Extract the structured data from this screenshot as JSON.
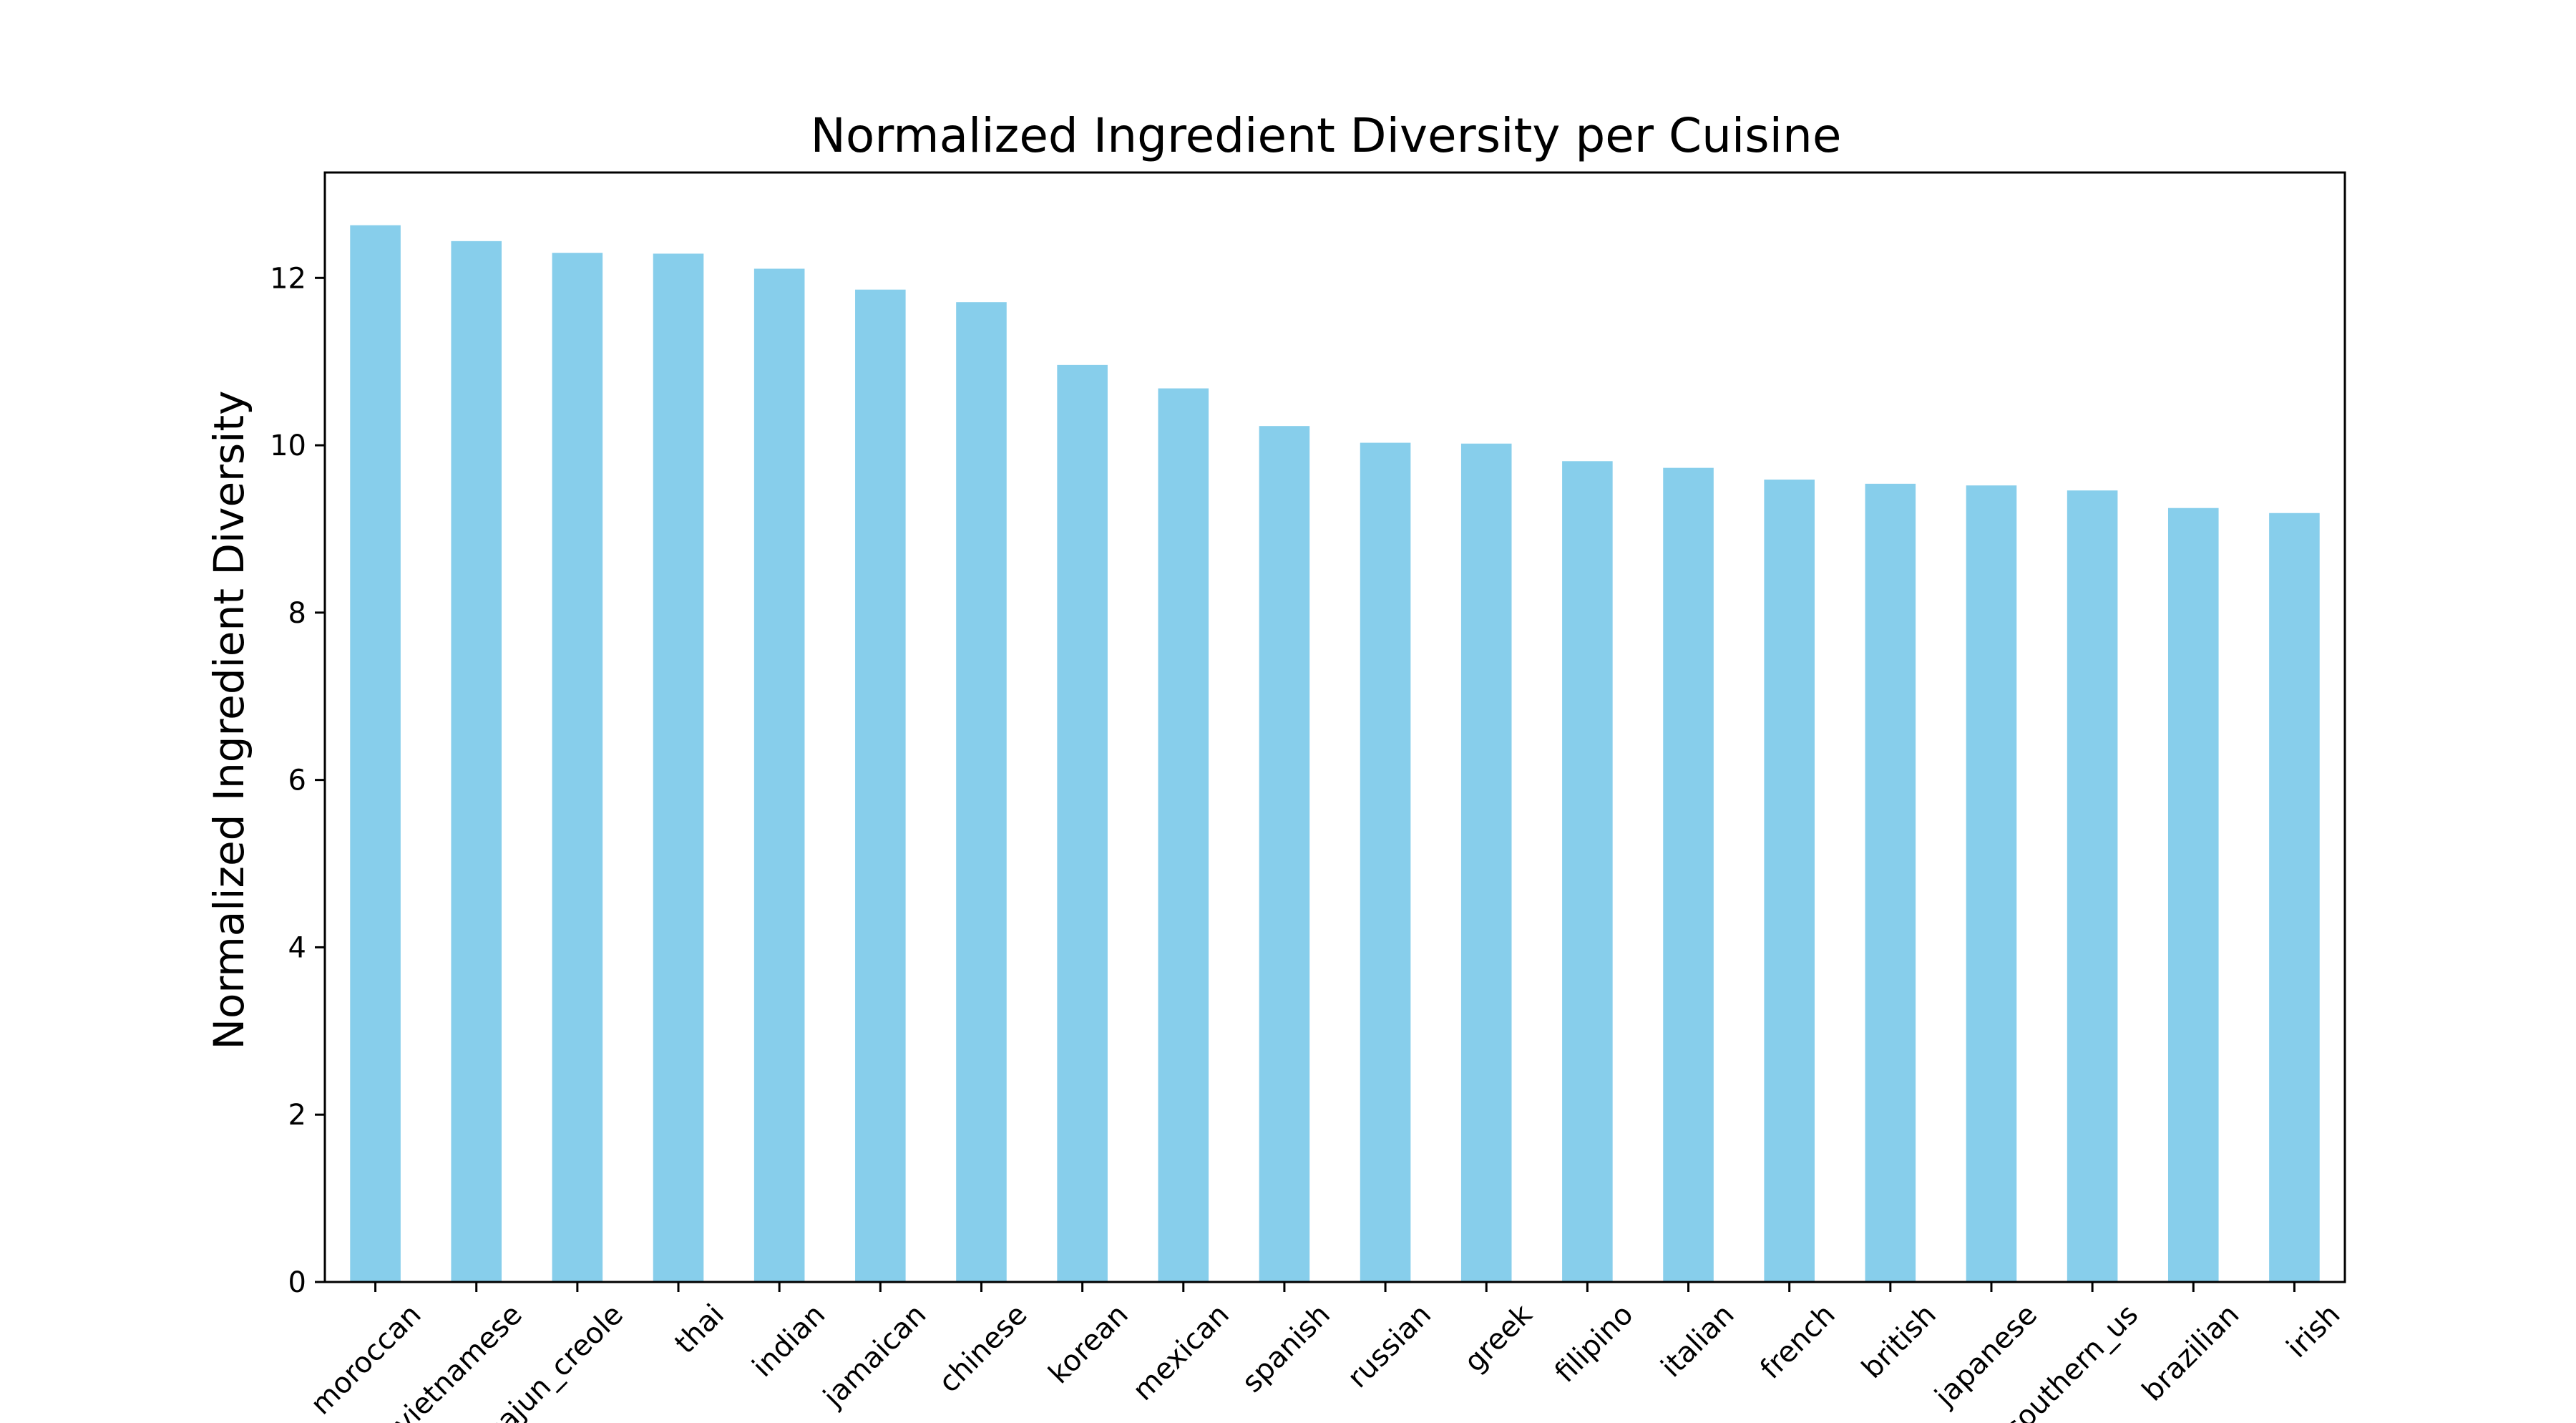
{
  "chart_data": {
    "type": "bar",
    "title": "Normalized Ingredient Diversity per Cuisine",
    "xlabel": "",
    "ylabel": "Normalized Ingredient Diversity",
    "categories": [
      "moroccan",
      "vietnamese",
      "cajun_creole",
      "thai",
      "indian",
      "jamaican",
      "chinese",
      "korean",
      "mexican",
      "spanish",
      "russian",
      "greek",
      "filipino",
      "italian",
      "french",
      "british",
      "japanese",
      "southern_us",
      "brazilian",
      "irish"
    ],
    "values": [
      12.63,
      12.44,
      12.3,
      12.29,
      12.11,
      11.86,
      11.71,
      10.96,
      10.68,
      10.23,
      10.03,
      10.02,
      9.81,
      9.73,
      9.59,
      9.54,
      9.52,
      9.46,
      9.25,
      9.19
    ],
    "yticks": [
      0,
      2,
      4,
      6,
      8,
      10,
      12
    ],
    "ylim": [
      0,
      13.26
    ],
    "bar_color": "#87ceeb",
    "grid": false,
    "legend": false
  }
}
